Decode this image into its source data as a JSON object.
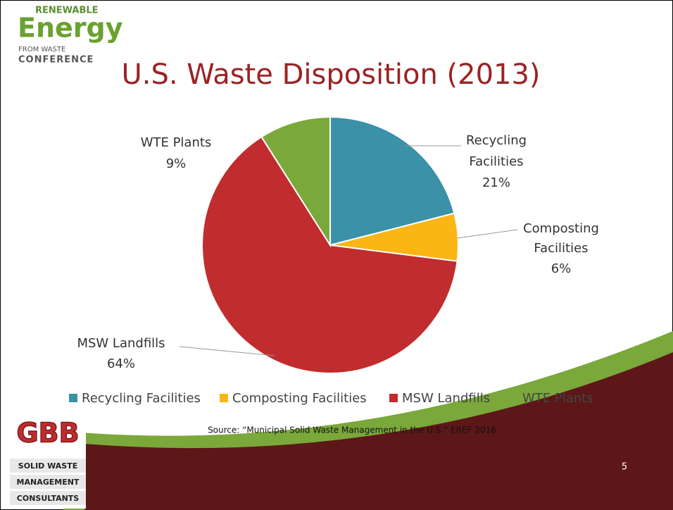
{
  "chart_data": {
    "type": "pie",
    "title": "U.S. Waste Disposition (2013)",
    "categories": [
      "Recycling Facilities",
      "Composting Facilities",
      "MSW Landfills",
      "WTE Plants"
    ],
    "values": [
      21,
      6,
      64,
      9
    ],
    "value_labels": [
      "21%",
      "6%",
      "64%",
      "9%"
    ],
    "colors": [
      "#3a91a8",
      "#fbb514",
      "#c12c2e",
      "#7aa83a"
    ],
    "legend": "bottom",
    "source": "Source: “Municipal Solid Waste Management in the U.S.” EREF 2016"
  },
  "slide": {
    "page_number": "5",
    "conference_logo": [
      "RENEWABLE",
      "Energy",
      "FROM WASTE",
      "CONFERENCE"
    ],
    "company_logo": [
      "GBB",
      "SOLID WASTE",
      "MANAGEMENT",
      "CONSULTANTS"
    ]
  }
}
